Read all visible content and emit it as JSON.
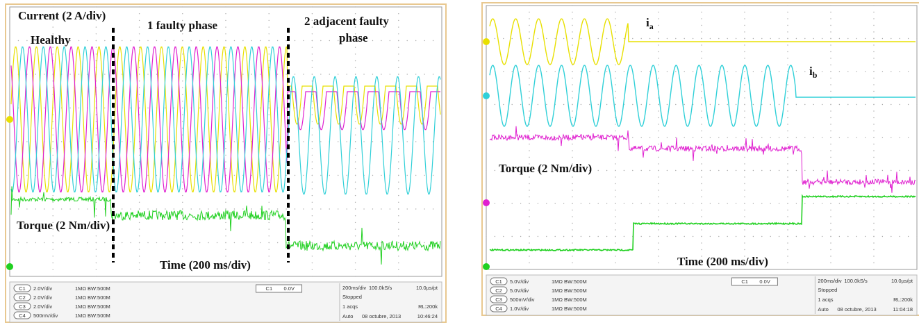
{
  "left": {
    "annotations": {
      "current": "Current (2 A/div)",
      "healthy": "Healthy",
      "one_fault": "1 faulty phase",
      "two_fault": [
        "2 adjacent faulty",
        "phase"
      ],
      "torque": "Torque (2 Nm/div)",
      "time": "Time (200 ms/div)"
    },
    "status": {
      "channels": [
        {
          "id": "C1",
          "scale": "2.0V/div",
          "imp": "1MΩ",
          "bw": "BW:500M"
        },
        {
          "id": "C2",
          "scale": "2.0V/div",
          "imp": "1MΩ",
          "bw": "BW:500M"
        },
        {
          "id": "C3",
          "scale": "2.0V/div",
          "imp": "1MΩ",
          "bw": "BW:500M"
        },
        {
          "id": "C4",
          "scale": "500mV/div",
          "imp": "1MΩ",
          "bw": "BW:500M"
        }
      ],
      "trigger": {
        "ch": "C1",
        "level": "0.0V"
      },
      "timebase": "200ms/div",
      "rate": "100.0kS/s",
      "pt": "10.0µs/pt",
      "state": "Stopped",
      "acqs": "1 acqs",
      "rl": "RL:200k",
      "mode": "Auto",
      "date": "08 octubre, 2013",
      "time": "10:46:24"
    }
  },
  "right": {
    "annotations": {
      "ia": {
        "main": "i",
        "sub": "a"
      },
      "ib": {
        "main": "i",
        "sub": "b"
      },
      "torque": "Torque (2 Nm/div)",
      "time": "Time (200 ms/div)"
    },
    "status": {
      "channels": [
        {
          "id": "C1",
          "scale": "5.0V/div",
          "imp": "1MΩ",
          "bw": "BW:500M"
        },
        {
          "id": "C2",
          "scale": "5.0V/div",
          "imp": "1MΩ",
          "bw": "BW:500M"
        },
        {
          "id": "C3",
          "scale": "500mV/div",
          "imp": "1MΩ",
          "bw": "BW:500M"
        },
        {
          "id": "C4",
          "scale": "1.0V/div",
          "imp": "1MΩ",
          "bw": "BW:500M"
        }
      ],
      "trigger": {
        "ch": "C1",
        "level": "0.0V"
      },
      "timebase": "200ms/div",
      "rate": "100.0kS/s",
      "pt": "10.0µs/pt",
      "state": "Stopped",
      "acqs": "1 acqs",
      "rl": "RL:200k",
      "mode": "Auto",
      "date": "08 octubre, 2013",
      "time": "11:04:18"
    }
  }
}
